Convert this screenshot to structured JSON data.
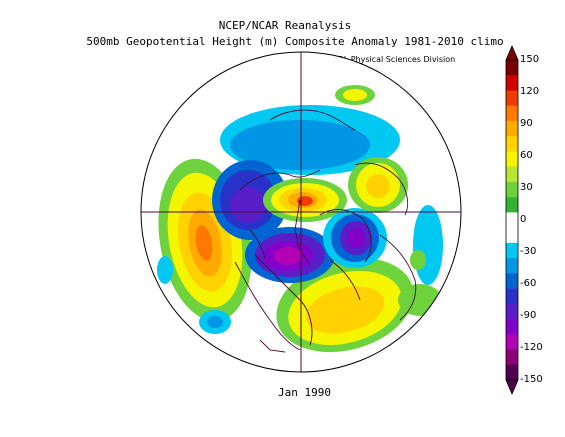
{
  "title_line1": "NCEP/NCAR Reanalysis",
  "title_line2": "500mb Geopotential Height (m) Composite Anomaly 1981-2010 climo",
  "credit": "NOAA/ESRL Physical Sciences Division",
  "date_label": "Jan 1990",
  "colorbar": {
    "labels": [
      "150",
      "120",
      "90",
      "60",
      "30",
      "0",
      "-30",
      "-60",
      "-90",
      "-120",
      "-150"
    ],
    "colors": [
      "#7a0000",
      "#d20000",
      "#f03c00",
      "#ff7800",
      "#ffaa00",
      "#ffd200",
      "#f5f500",
      "#b4e632",
      "#6ed23c",
      "#32b432",
      "#ffffff",
      "#ffffff",
      "#00c8f0",
      "#0096e6",
      "#0064d2",
      "#2832c8",
      "#5a1ec8",
      "#8200c8",
      "#b400b4",
      "#8c0078",
      "#500050"
    ]
  }
}
